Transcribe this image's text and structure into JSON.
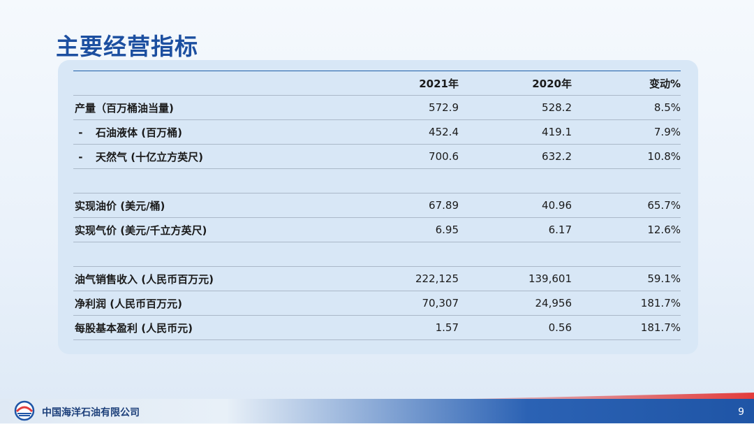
{
  "title": "主要经营指标",
  "table": {
    "headers": [
      "",
      "2021年",
      "2020年",
      "变动%"
    ],
    "rows": [
      {
        "label": "产量（百万桶油当量)",
        "sub": false,
        "v2021": "572.9",
        "v2020": "528.2",
        "change": "8.5%"
      },
      {
        "label": "石油液体 (百万桶)",
        "sub": true,
        "v2021": "452.4",
        "v2020": "419.1",
        "change": "7.9%"
      },
      {
        "label": "天然气 (十亿立方英尺)",
        "sub": true,
        "v2021": "700.6",
        "v2020": "632.2",
        "change": "10.8%"
      },
      {
        "label": "实现油价 (美元/桶)",
        "sub": false,
        "v2021": "67.89",
        "v2020": "40.96",
        "change": "65.7%"
      },
      {
        "label": "实现气价 (美元/千立方英尺)",
        "sub": false,
        "v2021": "6.95",
        "v2020": "6.17",
        "change": "12.6%"
      },
      {
        "label": "油气销售收入 (人民币百万元)",
        "sub": false,
        "v2021": "222,125",
        "v2020": "139,601",
        "change": "59.1%"
      },
      {
        "label": "净利润 (人民币百万元)",
        "sub": false,
        "v2021": "70,307",
        "v2020": "24,956",
        "change": "181.7%"
      },
      {
        "label": "每股基本盈利 (人民币元)",
        "sub": false,
        "v2021": "1.57",
        "v2020": "0.56",
        "change": "181.7%"
      }
    ]
  },
  "footer": {
    "company": "中国海洋石油有限公司",
    "page_number": "9",
    "logo_icon": "cnooc-logo-icon"
  },
  "colors": {
    "title": "#1c4fa0",
    "panel": "#d8e7f6",
    "accent_red": "#e23c3c",
    "footer_blue": "#1f55a6"
  }
}
